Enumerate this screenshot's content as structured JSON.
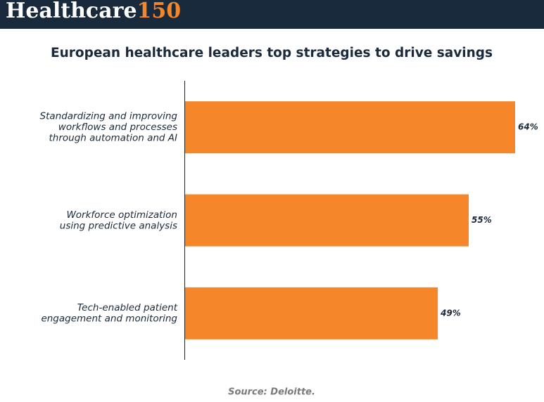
{
  "header": {
    "brand": "Healthcare",
    "brand_number": "150"
  },
  "chart_data": {
    "type": "bar",
    "orientation": "horizontal",
    "title": "European healthcare leaders top strategies to drive savings",
    "categories": [
      [
        "Standardizing and improving",
        "workflows and processes",
        "through automation and AI"
      ],
      [
        "Workforce optimization",
        "using predictive analysis"
      ],
      [
        "Tech-enabled patient",
        "engagement and monitoring"
      ]
    ],
    "values": [
      64,
      55,
      49
    ],
    "value_labels": [
      "64%",
      "55%",
      "49%"
    ],
    "color": "#f5862a",
    "source": "Source: Deloitte."
  }
}
